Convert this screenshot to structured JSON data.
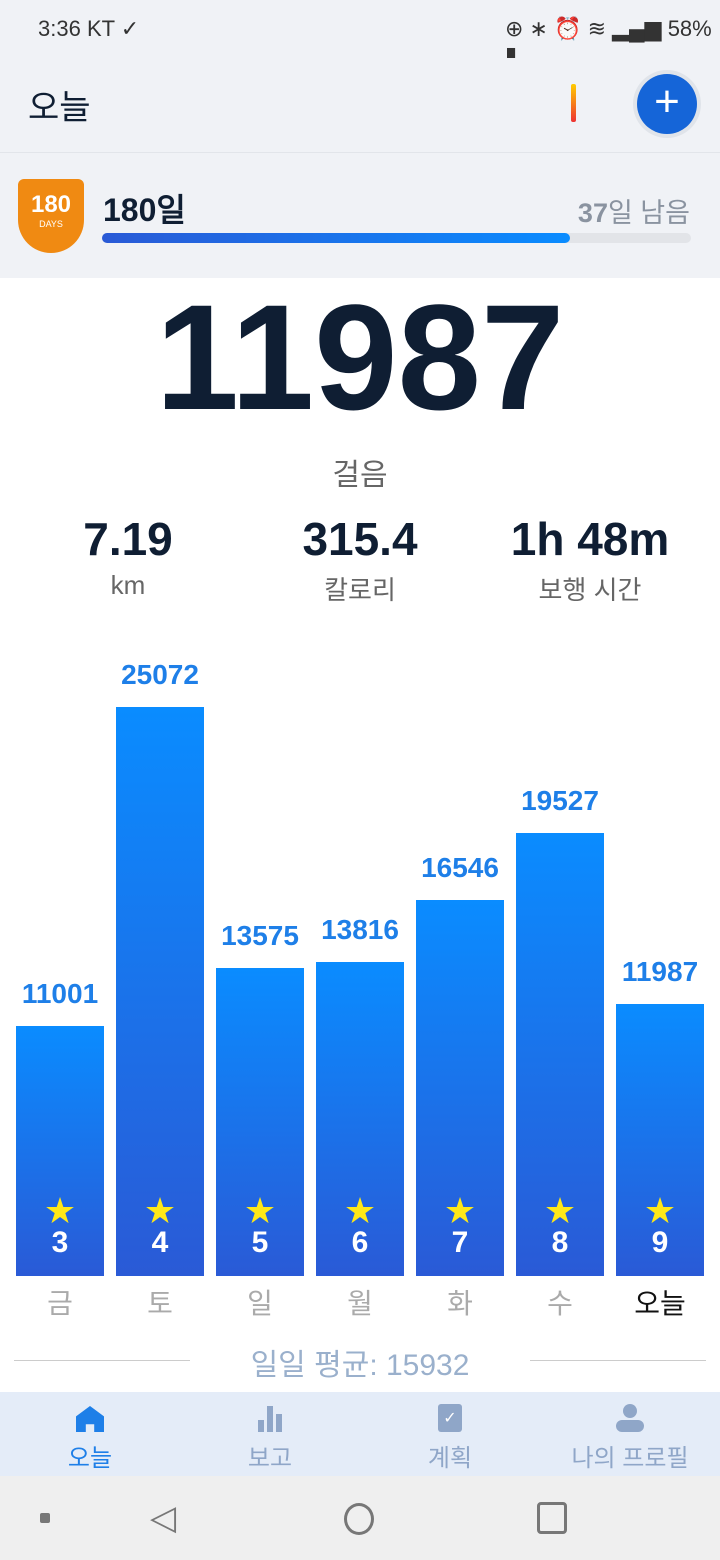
{
  "status_bar": {
    "time": "3:36",
    "carrier": "KT",
    "battery": "58%"
  },
  "header": {
    "title": "오늘",
    "add_icon": "plus-icon"
  },
  "challenge": {
    "badge_number": "180",
    "badge_text": "DAYS",
    "title": "180일",
    "remaining_number": "37",
    "remaining_suffix": "일 남음",
    "progress": 0.794,
    "badge_color": "#f08a12"
  },
  "summary": {
    "steps": "11987",
    "steps_label": "걸음",
    "stats": [
      {
        "value": "7.19",
        "label": "km"
      },
      {
        "value": "315.4",
        "label": "칼로리"
      },
      {
        "value": "1h 48m",
        "label": "보행 시간"
      }
    ]
  },
  "chart_data": {
    "type": "bar",
    "categories": [
      "금",
      "토",
      "일",
      "월",
      "화",
      "수",
      "오늘"
    ],
    "values": [
      11001,
      25072,
      13575,
      13816,
      16546,
      19527,
      11987
    ],
    "badges": [
      "3",
      "4",
      "5",
      "6",
      "7",
      "8",
      "9"
    ],
    "ylim": [
      0,
      25072
    ]
  },
  "average": {
    "label": "일일 평균: 15932"
  },
  "nav": [
    {
      "label": "오늘",
      "icon": "home-icon",
      "active": true
    },
    {
      "label": "보고",
      "icon": "bar-chart-icon"
    },
    {
      "label": "계획",
      "icon": "clipboard-check-icon"
    },
    {
      "label": "나의 프로필",
      "icon": "person-icon"
    }
  ],
  "colors": {
    "accent": "#1565d8",
    "bar_top": "#0a8cff",
    "bar_bottom": "#2a5ad6"
  }
}
